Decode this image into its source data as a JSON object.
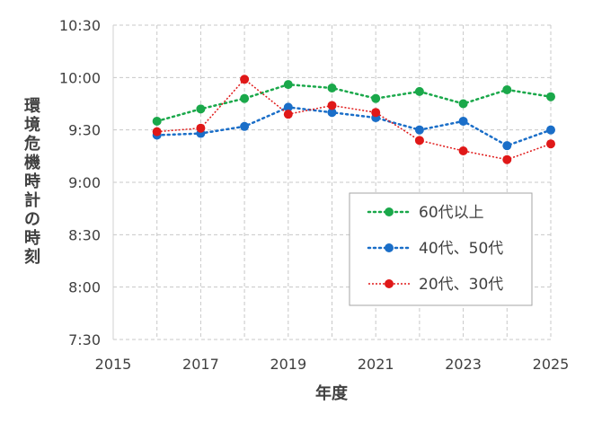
{
  "chart_data": {
    "type": "line",
    "xlabel": "年度",
    "ylabel": "環境危機時計の時刻",
    "x": [
      2016,
      2017,
      2018,
      2019,
      2020,
      2021,
      2022,
      2023,
      2024,
      2025
    ],
    "xlim": [
      2015,
      2025
    ],
    "xticks": [
      "2015",
      "2017",
      "2019",
      "2021",
      "2023",
      "2025"
    ],
    "ylim": [
      "7:30",
      "10:30"
    ],
    "yticks": [
      "7:30",
      "8:00",
      "8:30",
      "9:00",
      "9:30",
      "10:00",
      "10:30"
    ],
    "grid": "dashed vertical and horizontal",
    "legend_position": "lower-right",
    "series": [
      {
        "name": "60代以上",
        "color": "#1aa84a",
        "values": [
          "9:35",
          "9:42",
          "9:48",
          "9:56",
          "9:54",
          "9:48",
          "9:52",
          "9:45",
          "9:53",
          "9:49"
        ]
      },
      {
        "name": "40代、50代",
        "color": "#1a6ec8",
        "values": [
          "9:27",
          "9:28",
          "9:32",
          "9:43",
          "9:40",
          "9:37",
          "9:30",
          "9:35",
          "9:21",
          "9:30"
        ]
      },
      {
        "name": "20代、30代",
        "color": "#e01818",
        "values": [
          "9:29",
          "9:31",
          "9:59",
          "9:39",
          "9:44",
          "9:40",
          "9:24",
          "9:18",
          "9:13",
          "9:22"
        ]
      }
    ]
  }
}
